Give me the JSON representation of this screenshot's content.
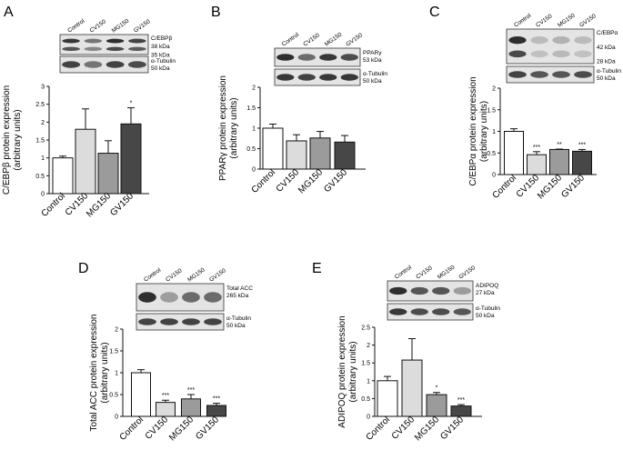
{
  "colors": {
    "Control": "#ffffff",
    "CV150": "#dcdcdc",
    "MG150": "#9b9b9b",
    "GV150": "#474747",
    "axis": "#111111",
    "blot_bg": "#e4e4e4",
    "band": "#1a1a1a"
  },
  "chart_data": [
    {
      "panel": "A",
      "type": "bar",
      "categories": [
        "Control",
        "CV150",
        "MG150",
        "GV150"
      ],
      "values": [
        1.0,
        1.8,
        1.13,
        1.95
      ],
      "errors": [
        0.05,
        0.57,
        0.35,
        0.45
      ],
      "significance": [
        "",
        "",
        "",
        "*"
      ],
      "ylabel": "C/EBPβ protein expression",
      "ylabel2": "(arbitrary units)",
      "ylim": [
        0,
        3
      ],
      "yticks": [
        "0",
        "0.5",
        "1",
        "1.5",
        "2",
        "2.5",
        "3"
      ],
      "blot_lanes": [
        "Control",
        "CV150",
        "MG150",
        "GV150"
      ],
      "blot_target": [
        "C/EBPβ",
        "38 kDa",
        "35 kDa"
      ],
      "blot_loading": [
        "α-Tubulin",
        "50 kDa"
      ],
      "target_intensity": [
        0.85,
        0.55,
        0.9,
        0.8
      ],
      "loading_intensity": [
        0.8,
        0.55,
        0.8,
        0.75
      ],
      "double_band": true
    },
    {
      "panel": "B",
      "type": "bar",
      "categories": [
        "Control",
        "CV150",
        "MG150",
        "GV150"
      ],
      "values": [
        1.0,
        0.69,
        0.76,
        0.66
      ],
      "errors": [
        0.1,
        0.15,
        0.16,
        0.16
      ],
      "significance": [
        "",
        "",
        "",
        ""
      ],
      "ylabel": "PPARγ protein expression",
      "ylabel2": "(arbitrary units)",
      "ylim": [
        0,
        2
      ],
      "yticks": [
        "0",
        "0.5",
        "1",
        "1.5",
        "2"
      ],
      "blot_lanes": [
        "Control",
        "CV150",
        "MG150",
        "GV150"
      ],
      "blot_target": [
        "PPARγ",
        "53 kDa"
      ],
      "blot_loading": [
        "α-Tubulin",
        "50 kDa"
      ],
      "target_intensity": [
        0.9,
        0.6,
        0.85,
        0.75
      ],
      "loading_intensity": [
        0.85,
        0.8,
        0.85,
        0.85
      ],
      "double_band": false
    },
    {
      "panel": "C",
      "type": "bar",
      "categories": [
        "Control",
        "CV150",
        "MG150",
        "GV150"
      ],
      "values": [
        1.0,
        0.46,
        0.58,
        0.54
      ],
      "errors": [
        0.06,
        0.07,
        0.01,
        0.04
      ],
      "significance": [
        "",
        "***",
        "**",
        "***"
      ],
      "ylabel": "C/EBPα protein expression",
      "ylabel2": "(arbitrary units)",
      "ylim": [
        0,
        2
      ],
      "yticks": [
        "0",
        "0.5",
        "1",
        "1.5",
        "2"
      ],
      "blot_lanes": [
        "Control",
        "CV150",
        "MG150",
        "GV150"
      ],
      "blot_target": [
        "C/EBPα",
        "42 kDa",
        "28 kDa"
      ],
      "blot_loading": [
        "α-Tubulin",
        "50 kDa"
      ],
      "target_intensity": [
        0.9,
        0.2,
        0.25,
        0.2
      ],
      "loading_intensity": [
        0.8,
        0.7,
        0.7,
        0.75
      ],
      "double_band": true
    },
    {
      "panel": "D",
      "type": "bar",
      "categories": [
        "Control",
        "CV150",
        "MG150",
        "GV150"
      ],
      "values": [
        1.0,
        0.32,
        0.4,
        0.25
      ],
      "errors": [
        0.07,
        0.05,
        0.1,
        0.05
      ],
      "significance": [
        "",
        "***",
        "***",
        "***"
      ],
      "ylabel": "Total ACC protein expression",
      "ylabel2": "(arbitrary units)",
      "ylim": [
        0,
        2
      ],
      "yticks": [
        "0",
        "0.5",
        "1",
        "1.5",
        "2"
      ],
      "blot_lanes": [
        "Control",
        "CV150",
        "MG150",
        "GV150"
      ],
      "blot_target": [
        "Total ACC",
        "265 kDa"
      ],
      "blot_loading": [
        "α-Tubulin",
        "50 kDa"
      ],
      "target_intensity": [
        0.9,
        0.35,
        0.6,
        0.6
      ],
      "loading_intensity": [
        0.8,
        0.8,
        0.8,
        0.8
      ],
      "double_band": false
    },
    {
      "panel": "E",
      "type": "bar",
      "categories": [
        "Control",
        "CV150",
        "MG150",
        "GV150"
      ],
      "values": [
        1.0,
        1.58,
        0.61,
        0.29
      ],
      "errors": [
        0.12,
        0.6,
        0.06,
        0.04
      ],
      "significance": [
        "",
        "",
        "*",
        "***"
      ],
      "ylabel": "ADIPOQ protein expression",
      "ylabel2": "(arbitrary units)",
      "ylim": [
        0,
        2.5
      ],
      "yticks": [
        "0",
        "0.5",
        "1",
        "1.5",
        "2",
        "2.5"
      ],
      "blot_lanes": [
        "Control",
        "CV150",
        "MG150",
        "GV150"
      ],
      "blot_target": [
        "ADIPOQ",
        "27 kDa"
      ],
      "blot_loading": [
        "α-Tubulin",
        "50 kDa"
      ],
      "target_intensity": [
        0.9,
        0.7,
        0.7,
        0.35
      ],
      "loading_intensity": [
        0.85,
        0.75,
        0.75,
        0.7
      ],
      "double_band": false
    }
  ]
}
